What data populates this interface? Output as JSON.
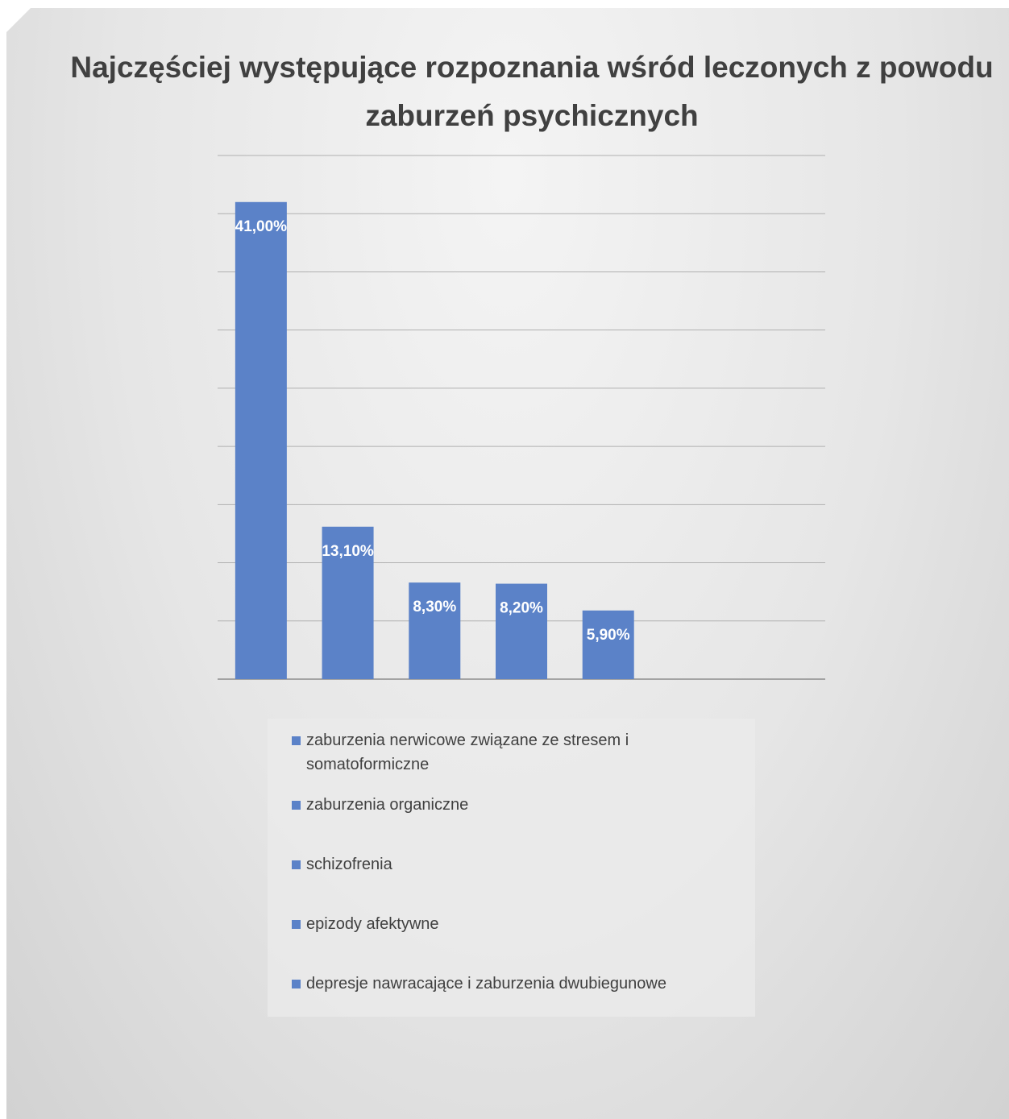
{
  "chart_data": {
    "type": "bar",
    "title": "Najczęściej występujące rozpoznania wśród leczonych z powodu zaburzeń psychicznych",
    "categories": [
      "zaburzenia nerwicowe związane ze stresem i somatoformiczne",
      "zaburzenia organiczne",
      "schizofrenia",
      "epizody afektywne",
      "depresje nawracające i zaburzenia dwubiegunowe"
    ],
    "values": [
      41.0,
      13.1,
      8.3,
      8.2,
      5.9
    ],
    "data_labels": [
      "41,00%",
      "13,10%",
      "8,30%",
      "8,20%",
      "5,90%"
    ],
    "ylim": [
      0,
      45
    ],
    "grid": true,
    "legend_position": "bottom",
    "colors": {
      "bar": "#5b82c8",
      "grid": "#b0b0b0",
      "label": "#ffffff"
    }
  }
}
